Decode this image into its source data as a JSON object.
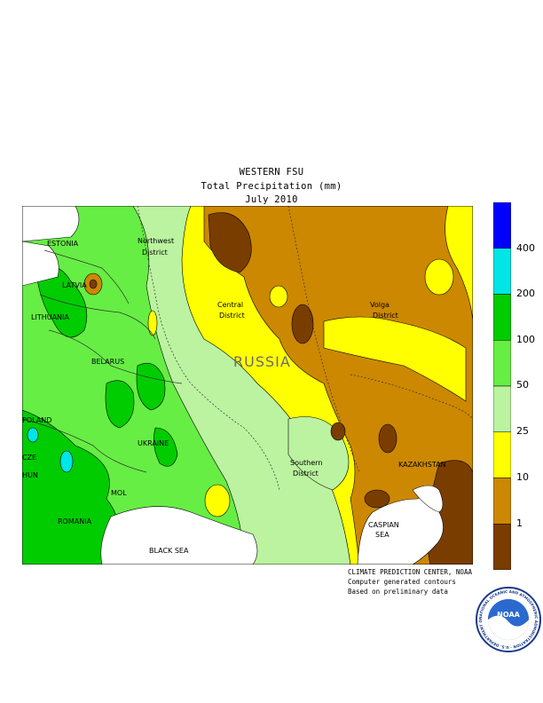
{
  "header": {
    "line1": "WESTERN FSU",
    "line2": "Total Precipitation (mm)",
    "line3": "July 2010"
  },
  "map": {
    "region_labels": {
      "estonia": "ESTONIA",
      "latvia": "LATVIA",
      "lithuania": "LITHUANIA",
      "belarus": "BELARUS",
      "poland": "POLAND",
      "cze": "CZE",
      "hun": "HUN",
      "ukraine": "UKRAINE",
      "mol": "MOL",
      "romania": "ROMANIA",
      "black_sea": "BLACK SEA",
      "northwest_1": "Northwest",
      "northwest_2": "District",
      "central_1": "Central",
      "central_2": "District",
      "volga_1": "Volga",
      "volga_2": "District",
      "southern_1": "Southern",
      "southern_2": "District",
      "russia": "RUSSIA",
      "kazakhstan": "KAZAKHSTAN",
      "caspian_1": "CASPIAN",
      "caspian_2": "SEA"
    }
  },
  "legend": {
    "labels": [
      "400",
      "200",
      "100",
      "50",
      "25",
      "10",
      "1"
    ],
    "colors": [
      "#0000ff",
      "#00e5e5",
      "#00cc00",
      "#66ee44",
      "#bbf3a0",
      "#ffff00",
      "#cc8800",
      "#7a3d00"
    ]
  },
  "credits": {
    "line1": "CLIMATE PREDICTION CENTER, NOAA",
    "line2": "Computer generated contours",
    "line3": "Based on preliminary data"
  },
  "logo": {
    "text": "NOAA",
    "ring_text": "NATIONAL OCEANIC AND ATMOSPHERIC ADMINISTRATION · U.S. DEPARTMENT OF COMMERCE"
  }
}
